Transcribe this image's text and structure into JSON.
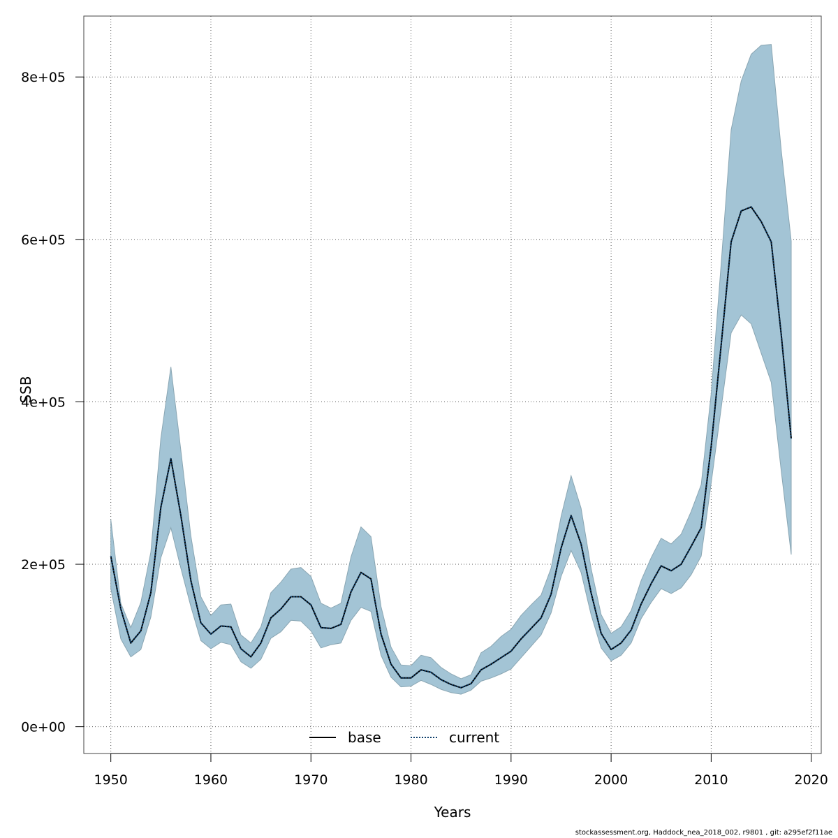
{
  "chart_data": {
    "type": "area",
    "xlabel": "Years",
    "ylabel": "SSB",
    "xlim": [
      1947.3,
      2021.0
    ],
    "ylim": [
      -33000,
      875000
    ],
    "x_ticks": [
      1950,
      1960,
      1970,
      1980,
      1990,
      2000,
      2010,
      2020
    ],
    "y_ticks": [
      0,
      200000,
      400000,
      600000,
      800000
    ],
    "y_tick_labels": [
      "0e+00",
      "2e+05",
      "4e+05",
      "6e+05",
      "8e+05"
    ],
    "grid": true,
    "legend_position": "bottom-center",
    "band_color": "#a3c4d5",
    "years": [
      1950,
      1951,
      1952,
      1953,
      1954,
      1955,
      1956,
      1957,
      1958,
      1959,
      1960,
      1961,
      1962,
      1963,
      1964,
      1965,
      1966,
      1967,
      1968,
      1969,
      1970,
      1971,
      1972,
      1973,
      1974,
      1975,
      1976,
      1977,
      1978,
      1979,
      1980,
      1981,
      1982,
      1983,
      1984,
      1985,
      1986,
      1987,
      1988,
      1989,
      1990,
      1991,
      1992,
      1993,
      1994,
      1995,
      1996,
      1997,
      1998,
      1999,
      2000,
      2001,
      2002,
      2003,
      2004,
      2005,
      2006,
      2007,
      2008,
      2009,
      2010,
      2011,
      2012,
      2013,
      2014,
      2015,
      2016,
      2017,
      2018
    ],
    "band": {
      "lower": [
        170000,
        108000,
        86000,
        95000,
        135000,
        208000,
        245000,
        195000,
        148000,
        106000,
        96000,
        104000,
        101000,
        80000,
        72000,
        83000,
        109000,
        117000,
        131000,
        130000,
        118000,
        97000,
        101000,
        103000,
        131000,
        147000,
        142000,
        88000,
        61000,
        49000,
        50000,
        57000,
        52000,
        46000,
        42000,
        40000,
        45000,
        56000,
        60000,
        65000,
        71000,
        85000,
        99000,
        113000,
        140000,
        185000,
        217000,
        190000,
        138000,
        97000,
        81000,
        88000,
        103000,
        133000,
        153000,
        170000,
        164000,
        171000,
        187000,
        210000,
        300000,
        392000,
        485000,
        507000,
        496000,
        460000,
        424000,
        315000,
        212000
      ],
      "upper": [
        255000,
        152000,
        122000,
        153000,
        215000,
        355000,
        443000,
        340000,
        235000,
        160000,
        137000,
        150000,
        151000,
        113000,
        103000,
        123000,
        165000,
        178000,
        194000,
        196000,
        185000,
        152000,
        146000,
        152000,
        209000,
        246000,
        234000,
        148000,
        98000,
        76000,
        75000,
        88000,
        85000,
        73000,
        65000,
        59000,
        64000,
        91000,
        99000,
        111000,
        120000,
        137000,
        150000,
        162000,
        195000,
        259000,
        309000,
        269000,
        195000,
        138000,
        115000,
        123000,
        143000,
        180000,
        208000,
        232000,
        225000,
        237000,
        265000,
        298000,
        410000,
        570000,
        735000,
        795000,
        828000,
        839000,
        840000,
        710000,
        598000
      ]
    },
    "series": [
      {
        "name": "base",
        "color": "#000000",
        "dash": "solid",
        "values": [
          210000,
          145000,
          103000,
          118000,
          165000,
          270000,
          330000,
          260000,
          180000,
          128000,
          114000,
          124000,
          123000,
          96000,
          86000,
          103000,
          134000,
          145000,
          160000,
          160000,
          150000,
          122000,
          121000,
          126000,
          166000,
          190000,
          182000,
          114000,
          77000,
          60000,
          60000,
          70000,
          67000,
          58000,
          52000,
          48000,
          53000,
          70000,
          77000,
          85000,
          93000,
          108000,
          121000,
          134000,
          163000,
          220000,
          260000,
          225000,
          165000,
          115000,
          95000,
          103000,
          119000,
          151000,
          176000,
          198000,
          192000,
          200000,
          222000,
          245000,
          345000,
          470000,
          597000,
          635000,
          640000,
          622000,
          597000,
          483000,
          355000
        ]
      },
      {
        "name": "current",
        "color": "#0e3f6b",
        "dash": "dotted",
        "values": [
          210000,
          145000,
          103000,
          118000,
          165000,
          270000,
          330000,
          260000,
          180000,
          128000,
          114000,
          124000,
          123000,
          96000,
          86000,
          103000,
          134000,
          145000,
          160000,
          160000,
          150000,
          122000,
          121000,
          126000,
          166000,
          190000,
          182000,
          114000,
          77000,
          60000,
          60000,
          70000,
          67000,
          58000,
          52000,
          48000,
          53000,
          70000,
          77000,
          85000,
          93000,
          108000,
          121000,
          134000,
          163000,
          220000,
          260000,
          225000,
          165000,
          115000,
          95000,
          103000,
          119000,
          151000,
          176000,
          198000,
          192000,
          200000,
          222000,
          245000,
          345000,
          470000,
          597000,
          635000,
          640000,
          622000,
          597000,
          483000,
          355000
        ]
      }
    ]
  },
  "legend": {
    "base_label": "base",
    "current_label": "current"
  },
  "footer_text": "stockassessment.org, Haddock_nea_2018_002, r9801 , git: a295ef2f11ae"
}
